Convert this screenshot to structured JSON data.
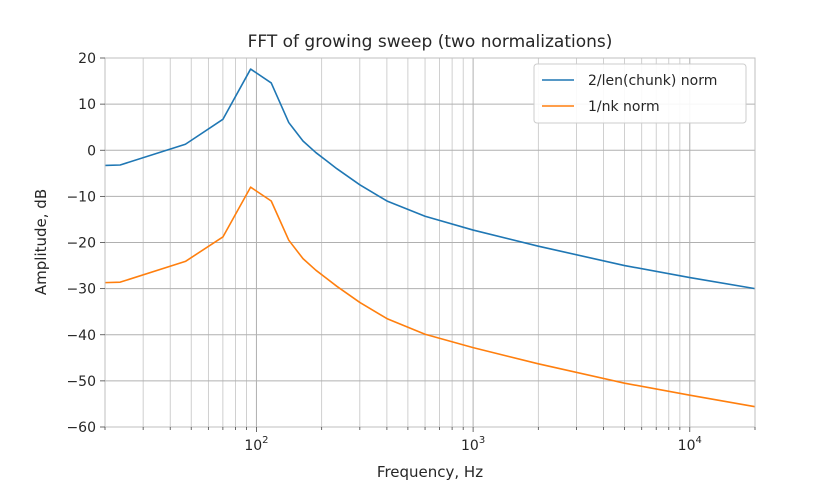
{
  "chart_data": {
    "type": "line",
    "title": "FFT of growing sweep (two normalizations)",
    "xlabel": "Frequency, Hz",
    "ylabel": "Amplitude, dB",
    "xscale": "log",
    "xlim": [
      20,
      20000
    ],
    "ylim": [
      -60,
      20
    ],
    "grid": true,
    "legend_position": "top-right",
    "x_tick_labels": [
      {
        "value": 100,
        "base": "10",
        "exp": "2"
      },
      {
        "value": 1000,
        "base": "10",
        "exp": "3"
      },
      {
        "value": 10000,
        "base": "10",
        "exp": "4"
      }
    ],
    "y_ticks": [
      20,
      10,
      0,
      -10,
      -20,
      -30,
      -40,
      -50,
      -60
    ],
    "y_tick_labels": [
      "20",
      "10",
      "0",
      "−10",
      "−20",
      "−30",
      "−40",
      "−50",
      "−60"
    ],
    "series": [
      {
        "name": "2/len(chunk) norm",
        "color": "#1f77b4",
        "points": [
          [
            20,
            -3.3
          ],
          [
            23.5,
            -3.2
          ],
          [
            47,
            1.3
          ],
          [
            70,
            6.7
          ],
          [
            94,
            17.6
          ],
          [
            117,
            14.6
          ],
          [
            141,
            6.0
          ],
          [
            164,
            2.0
          ],
          [
            188,
            -0.5
          ],
          [
            211,
            -2.3
          ],
          [
            235,
            -4.0
          ],
          [
            300,
            -7.5
          ],
          [
            400,
            -11.0
          ],
          [
            600,
            -14.3
          ],
          [
            1000,
            -17.3
          ],
          [
            2000,
            -20.8
          ],
          [
            5000,
            -25.0
          ],
          [
            10000,
            -27.6
          ],
          [
            20000,
            -30.0
          ]
        ]
      },
      {
        "name": "1/nk norm",
        "color": "#ff7f0e",
        "points": [
          [
            20,
            -28.7
          ],
          [
            23.5,
            -28.6
          ],
          [
            47,
            -24.1
          ],
          [
            70,
            -18.8
          ],
          [
            94,
            -8.0
          ],
          [
            117,
            -11.0
          ],
          [
            141,
            -19.5
          ],
          [
            164,
            -23.5
          ],
          [
            188,
            -26.0
          ],
          [
            211,
            -27.8
          ],
          [
            235,
            -29.5
          ],
          [
            300,
            -33.0
          ],
          [
            400,
            -36.5
          ],
          [
            600,
            -39.9
          ],
          [
            1000,
            -42.8
          ],
          [
            2000,
            -46.3
          ],
          [
            5000,
            -50.5
          ],
          [
            10000,
            -53.1
          ],
          [
            20000,
            -55.6
          ]
        ]
      }
    ]
  }
}
